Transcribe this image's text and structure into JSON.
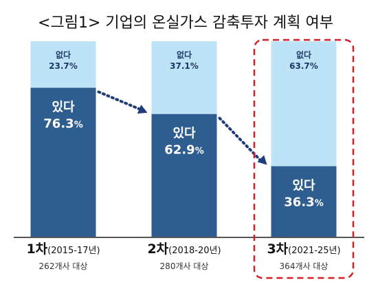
{
  "chart_data": {
    "type": "bar",
    "stacked": true,
    "title": "<그림1> 기업의 온실가스 감축투자 계획 여부",
    "categories": [
      {
        "round": "1차",
        "years": "(2015-17년)",
        "count": "262개사 대상"
      },
      {
        "round": "2차",
        "years": "(2018-20년)",
        "count": "280개사 대상"
      },
      {
        "round": "3차",
        "years": "(2021-25년)",
        "count": "364개사 대상"
      }
    ],
    "series": [
      {
        "name": "있다",
        "values": [
          76.3,
          62.9,
          36.3
        ],
        "color": "#2e5e8f",
        "text_color": "#ffffff"
      },
      {
        "name": "없다",
        "values": [
          23.7,
          37.1,
          63.7
        ],
        "color": "#bde3f7",
        "text_color": "#1f3864"
      }
    ],
    "unit": "%",
    "ylim": [
      0,
      100
    ],
    "highlight_category_index": 2,
    "highlight_color": "#d21f26",
    "arrow_color": "#1f3b7a",
    "baseline_color": "#555555"
  }
}
